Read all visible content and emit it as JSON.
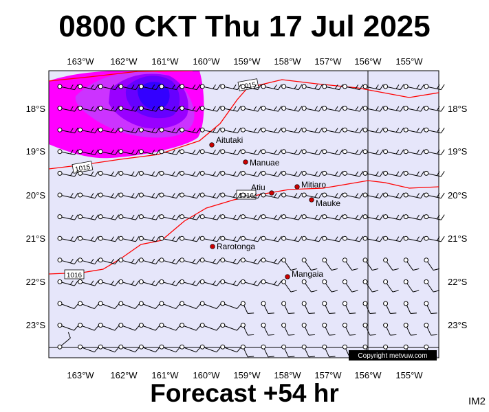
{
  "title": "0800 CKT Thu 17 Jul 2025",
  "forecast_label": "Forecast +54 hr",
  "image_id": "IM2",
  "copyright": "Copyright metvuw.com",
  "lon_labels": [
    "163°W",
    "162°W",
    "161°W",
    "160°W",
    "159°W",
    "158°W",
    "157°W",
    "156°W",
    "155°W"
  ],
  "lat_labels": [
    "18°S",
    "19°S",
    "20°S",
    "21°S",
    "22°S",
    "23°S"
  ],
  "isobar_labels": [
    "1015",
    "1015",
    "1016",
    "1016"
  ],
  "places": [
    {
      "name": "Aitutaki"
    },
    {
      "name": "Manuae"
    },
    {
      "name": "Atiu"
    },
    {
      "name": "Mitiaro"
    },
    {
      "name": "Mauke"
    },
    {
      "name": "Rarotonga"
    },
    {
      "name": "Mangaia"
    }
  ],
  "colors": {
    "ocean": "#e6e6fa",
    "isobar": "#ff0000",
    "rain_light": "#ff00ff",
    "rain_medium": "#9900ff",
    "rain_heavy": "#3300ff",
    "place_marker": "#cc0000"
  }
}
